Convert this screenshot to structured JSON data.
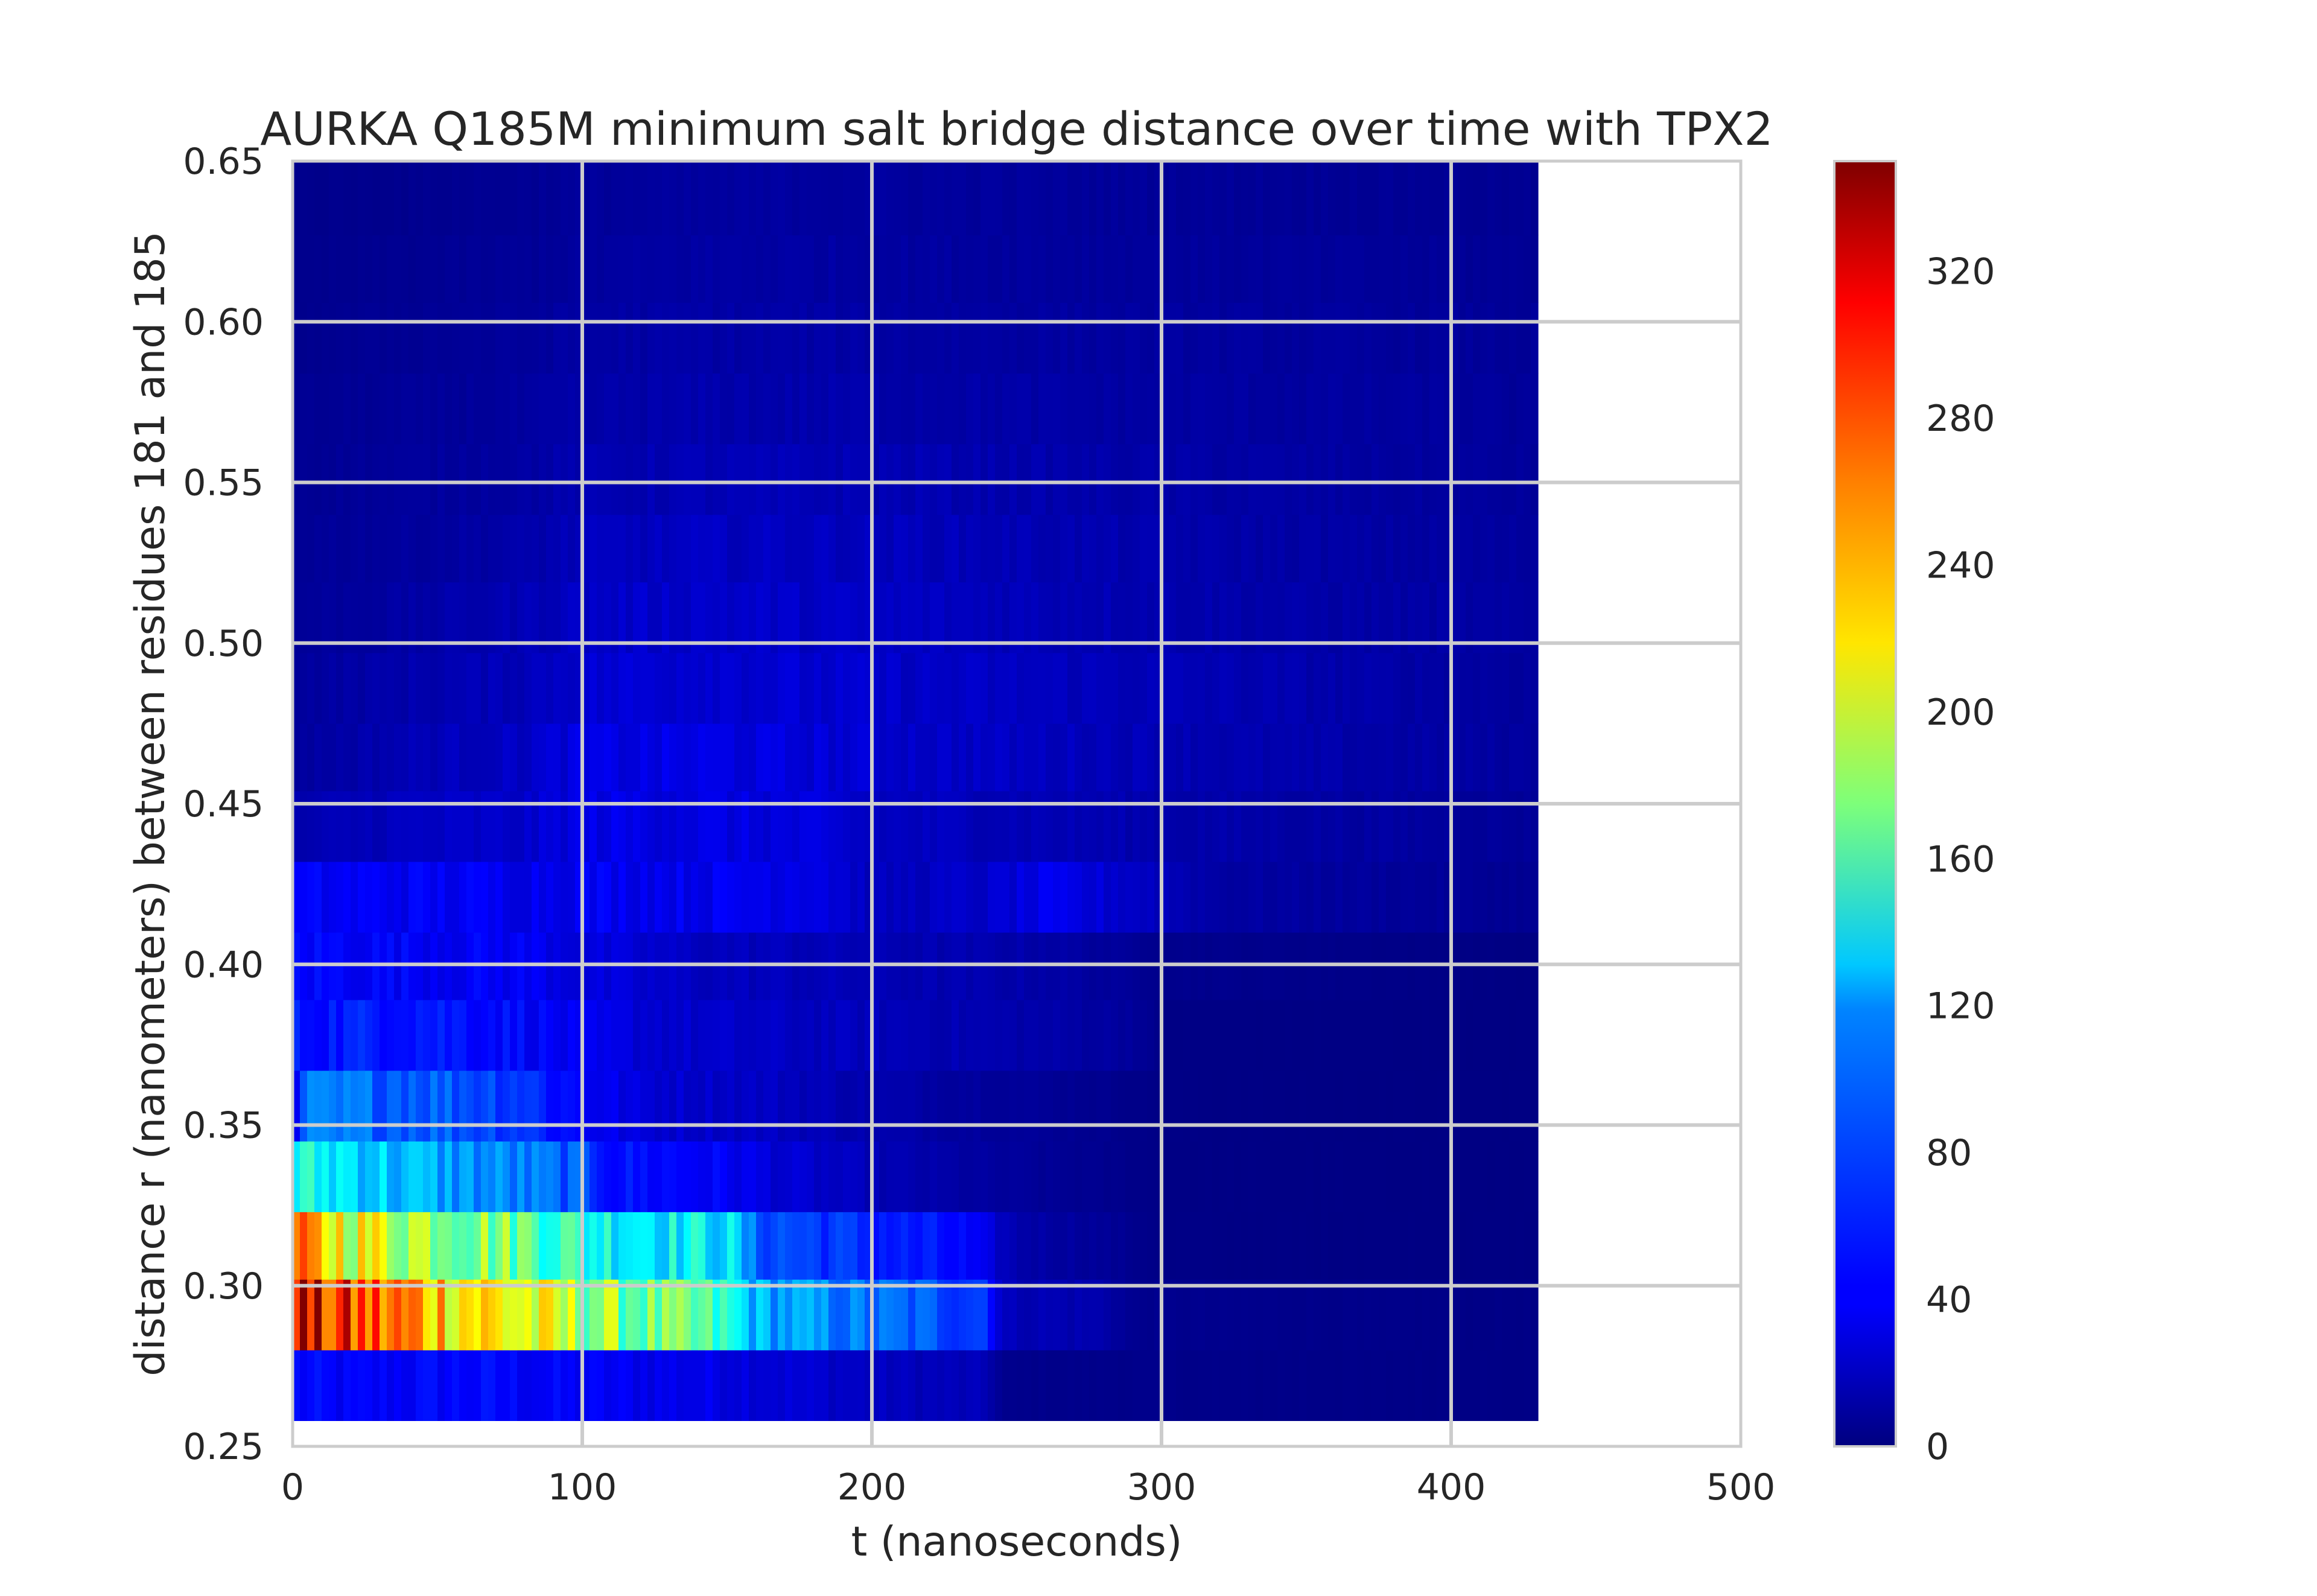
{
  "chart_data": {
    "type": "heatmap",
    "title": "AURKA Q185M minimum salt bridge distance over time with TPX2",
    "xlabel": "t (nanoseconds)",
    "ylabel": "distance r (nanometers) between residues 181 and 185",
    "xlim": [
      0,
      500
    ],
    "ylim": [
      0.25,
      0.65
    ],
    "xticks": [
      "0",
      "100",
      "200",
      "300",
      "400",
      "500"
    ],
    "yticks": [
      "0.25",
      "0.30",
      "0.35",
      "0.40",
      "0.45",
      "0.50",
      "0.55",
      "0.60",
      "0.65"
    ],
    "grid": true,
    "colormap": "jet",
    "colorbar": {
      "min": 0,
      "max": 350,
      "ticks": [
        "0",
        "40",
        "80",
        "120",
        "160",
        "200",
        "240",
        "280",
        "320"
      ]
    },
    "data_extent_t": [
      0,
      430
    ],
    "bin_width_t": 2.5,
    "distance_bin_edges": [
      0.258,
      0.28,
      0.302,
      0.323,
      0.345,
      0.367,
      0.389,
      0.41,
      0.432,
      0.454,
      0.475,
      0.497,
      0.519,
      0.54,
      0.562,
      0.584,
      0.606,
      0.627,
      0.65
    ],
    "profiles": [
      {
        "r": [
          0.258,
          0.28
        ],
        "points": [
          [
            0,
            45
          ],
          [
            20,
            40
          ],
          [
            60,
            45
          ],
          [
            100,
            40
          ],
          [
            150,
            35
          ],
          [
            200,
            22
          ],
          [
            240,
            18
          ],
          [
            245,
            4
          ],
          [
            430,
            2
          ]
        ]
      },
      {
        "r": [
          0.28,
          0.302
        ],
        "points": [
          [
            0,
            350
          ],
          [
            3,
            330
          ],
          [
            5,
            300
          ],
          [
            20,
            280
          ],
          [
            40,
            255
          ],
          [
            60,
            235
          ],
          [
            80,
            210
          ],
          [
            100,
            185
          ],
          [
            120,
            170
          ],
          [
            140,
            155
          ],
          [
            150,
            140
          ],
          [
            160,
            105
          ],
          [
            200,
            80
          ],
          [
            240,
            65
          ],
          [
            245,
            20
          ],
          [
            280,
            15
          ],
          [
            290,
            5
          ],
          [
            430,
            2
          ]
        ]
      },
      {
        "r": [
          0.302,
          0.323
        ],
        "points": [
          [
            0,
            255
          ],
          [
            3,
            240
          ],
          [
            10,
            230
          ],
          [
            30,
            205
          ],
          [
            60,
            185
          ],
          [
            90,
            160
          ],
          [
            100,
            140
          ],
          [
            150,
            125
          ],
          [
            160,
            75
          ],
          [
            200,
            55
          ],
          [
            230,
            45
          ],
          [
            250,
            15
          ],
          [
            280,
            8
          ],
          [
            300,
            2
          ],
          [
            430,
            1
          ]
        ]
      },
      {
        "r": [
          0.323,
          0.345
        ],
        "points": [
          [
            0,
            135
          ],
          [
            20,
            125
          ],
          [
            40,
            105
          ],
          [
            80,
            85
          ],
          [
            100,
            70
          ],
          [
            110,
            50
          ],
          [
            150,
            40
          ],
          [
            170,
            28
          ],
          [
            200,
            18
          ],
          [
            240,
            10
          ],
          [
            300,
            2
          ],
          [
            430,
            1
          ]
        ]
      },
      {
        "r": [
          0.345,
          0.367
        ],
        "points": [
          [
            0,
            15
          ],
          [
            4,
            80
          ],
          [
            40,
            80
          ],
          [
            80,
            65
          ],
          [
            90,
            50
          ],
          [
            120,
            30
          ],
          [
            170,
            22
          ],
          [
            200,
            15
          ],
          [
            240,
            10
          ],
          [
            280,
            5
          ],
          [
            300,
            2
          ],
          [
            430,
            1
          ]
        ]
      },
      {
        "r": [
          0.367,
          0.389
        ],
        "points": [
          [
            0,
            50
          ],
          [
            40,
            55
          ],
          [
            80,
            45
          ],
          [
            100,
            35
          ],
          [
            140,
            25
          ],
          [
            200,
            20
          ],
          [
            250,
            15
          ],
          [
            290,
            10
          ],
          [
            300,
            2
          ],
          [
            430,
            1
          ]
        ]
      },
      {
        "r": [
          0.389,
          0.41
        ],
        "points": [
          [
            0,
            45
          ],
          [
            40,
            42
          ],
          [
            80,
            40
          ],
          [
            100,
            32
          ],
          [
            140,
            22
          ],
          [
            200,
            18
          ],
          [
            260,
            14
          ],
          [
            300,
            5
          ],
          [
            430,
            1
          ]
        ]
      },
      {
        "r": [
          0.41,
          0.432
        ],
        "points": [
          [
            0,
            40
          ],
          [
            50,
            40
          ],
          [
            80,
            38
          ],
          [
            100,
            40
          ],
          [
            140,
            38
          ],
          [
            180,
            38
          ],
          [
            200,
            20
          ],
          [
            240,
            25
          ],
          [
            260,
            35
          ],
          [
            290,
            25
          ],
          [
            320,
            12
          ],
          [
            380,
            9
          ],
          [
            430,
            6
          ]
        ]
      },
      {
        "r": [
          0.432,
          0.454
        ],
        "points": [
          [
            0,
            15
          ],
          [
            40,
            22
          ],
          [
            80,
            25
          ],
          [
            100,
            35
          ],
          [
            140,
            34
          ],
          [
            180,
            30
          ],
          [
            200,
            22
          ],
          [
            240,
            20
          ],
          [
            300,
            15
          ],
          [
            380,
            11
          ],
          [
            430,
            8
          ]
        ]
      },
      {
        "r": [
          0.454,
          0.475
        ],
        "points": [
          [
            0,
            10
          ],
          [
            40,
            18
          ],
          [
            80,
            24
          ],
          [
            100,
            33
          ],
          [
            140,
            34
          ],
          [
            180,
            30
          ],
          [
            220,
            25
          ],
          [
            280,
            20
          ],
          [
            340,
            15
          ],
          [
            400,
            12
          ],
          [
            430,
            10
          ]
        ]
      },
      {
        "r": [
          0.475,
          0.497
        ],
        "points": [
          [
            0,
            10
          ],
          [
            40,
            15
          ],
          [
            80,
            20
          ],
          [
            100,
            28
          ],
          [
            140,
            30
          ],
          [
            180,
            27
          ],
          [
            220,
            24
          ],
          [
            280,
            20
          ],
          [
            340,
            16
          ],
          [
            400,
            12
          ],
          [
            430,
            10
          ]
        ]
      },
      {
        "r": [
          0.497,
          0.519
        ],
        "points": [
          [
            0,
            8
          ],
          [
            40,
            12
          ],
          [
            80,
            18
          ],
          [
            100,
            24
          ],
          [
            140,
            26
          ],
          [
            180,
            24
          ],
          [
            220,
            22
          ],
          [
            280,
            18
          ],
          [
            340,
            14
          ],
          [
            400,
            12
          ],
          [
            430,
            10
          ]
        ]
      },
      {
        "r": [
          0.519,
          0.54
        ],
        "points": [
          [
            0,
            8
          ],
          [
            40,
            10
          ],
          [
            80,
            14
          ],
          [
            100,
            20
          ],
          [
            140,
            22
          ],
          [
            180,
            22
          ],
          [
            220,
            20
          ],
          [
            280,
            16
          ],
          [
            340,
            13
          ],
          [
            400,
            11
          ],
          [
            430,
            10
          ]
        ]
      },
      {
        "r": [
          0.54,
          0.562
        ],
        "points": [
          [
            0,
            7
          ],
          [
            40,
            9
          ],
          [
            80,
            12
          ],
          [
            100,
            16
          ],
          [
            140,
            18
          ],
          [
            180,
            18
          ],
          [
            220,
            17
          ],
          [
            280,
            14
          ],
          [
            340,
            12
          ],
          [
            400,
            10
          ],
          [
            430,
            9
          ]
        ]
      },
      {
        "r": [
          0.562,
          0.584
        ],
        "points": [
          [
            0,
            6
          ],
          [
            40,
            8
          ],
          [
            80,
            10
          ],
          [
            100,
            13
          ],
          [
            140,
            15
          ],
          [
            180,
            15
          ],
          [
            220,
            14
          ],
          [
            280,
            12
          ],
          [
            340,
            11
          ],
          [
            400,
            10
          ],
          [
            430,
            8
          ]
        ]
      },
      {
        "r": [
          0.584,
          0.606
        ],
        "points": [
          [
            0,
            5
          ],
          [
            40,
            7
          ],
          [
            80,
            9
          ],
          [
            100,
            12
          ],
          [
            140,
            13
          ],
          [
            180,
            13
          ],
          [
            220,
            12
          ],
          [
            280,
            11
          ],
          [
            340,
            10
          ],
          [
            400,
            9
          ],
          [
            430,
            8
          ]
        ]
      },
      {
        "r": [
          0.606,
          0.627
        ],
        "points": [
          [
            0,
            4
          ],
          [
            40,
            6
          ],
          [
            80,
            8
          ],
          [
            100,
            10
          ],
          [
            140,
            12
          ],
          [
            180,
            12
          ],
          [
            220,
            11
          ],
          [
            280,
            10
          ],
          [
            340,
            9
          ],
          [
            400,
            8
          ],
          [
            430,
            7
          ]
        ]
      },
      {
        "r": [
          0.627,
          0.65
        ],
        "points": [
          [
            0,
            4
          ],
          [
            40,
            5
          ],
          [
            80,
            7
          ],
          [
            100,
            9
          ],
          [
            140,
            10
          ],
          [
            180,
            11
          ],
          [
            220,
            10
          ],
          [
            280,
            9
          ],
          [
            340,
            8
          ],
          [
            400,
            7
          ],
          [
            430,
            6
          ]
        ]
      }
    ]
  }
}
